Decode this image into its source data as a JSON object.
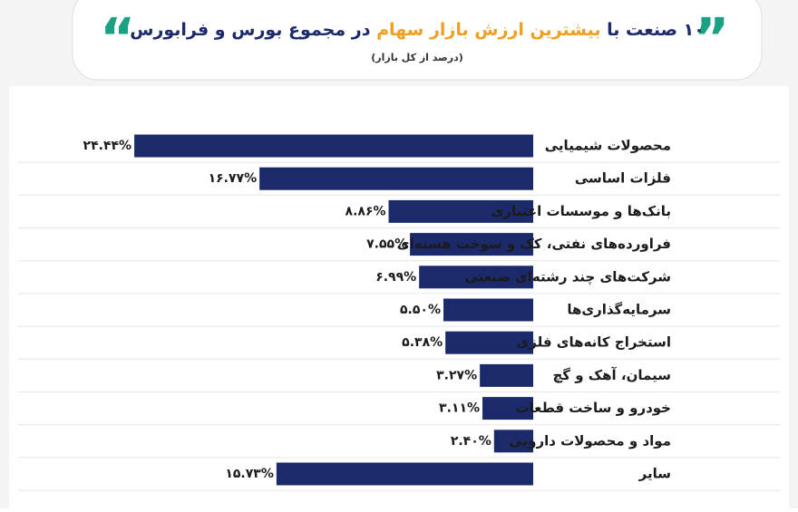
{
  "chart_data": {
    "type": "bar",
    "title_start": "۱۰ صنعت با ",
    "title_highlight": "بیشترین ارزش بازار سهام",
    "title_end": " در مجموع بورس و فرابورس",
    "subtitle": "(درصد از کل بازار)",
    "categories": [
      "محصولات شیمیایی",
      "فلزات اساسی",
      "بانک‌ها و موسسات اعتباری",
      "فراورده‌های نفتی، کک و سوخت هسته‌ای",
      "شرکت‌های چند رشته‌ای صنعتی",
      "سرمایه‌گذاری‌ها",
      "استخراج کانه‌های فلزی",
      "سیمان، آهک و گچ",
      "خودرو و ساخت قطعات",
      "مواد و محصولات دارویی",
      "سایر"
    ],
    "values": [
      24.44,
      16.77,
      8.86,
      7.55,
      6.99,
      5.5,
      5.38,
      3.27,
      3.11,
      2.4,
      15.73
    ],
    "value_labels": [
      "۲۴.۴۴%",
      "۱۶.۷۷%",
      "۸.۸۶%",
      "۷.۵۵%",
      "۶.۹۹%",
      "۵.۵۰%",
      "۵.۳۸%",
      "۳.۲۷%",
      "۳.۱۱%",
      "۲.۴۰%",
      "۱۵.۷۳%"
    ],
    "color": "#1b2a6b",
    "highlight_color": "#f0a020",
    "grid": true
  }
}
